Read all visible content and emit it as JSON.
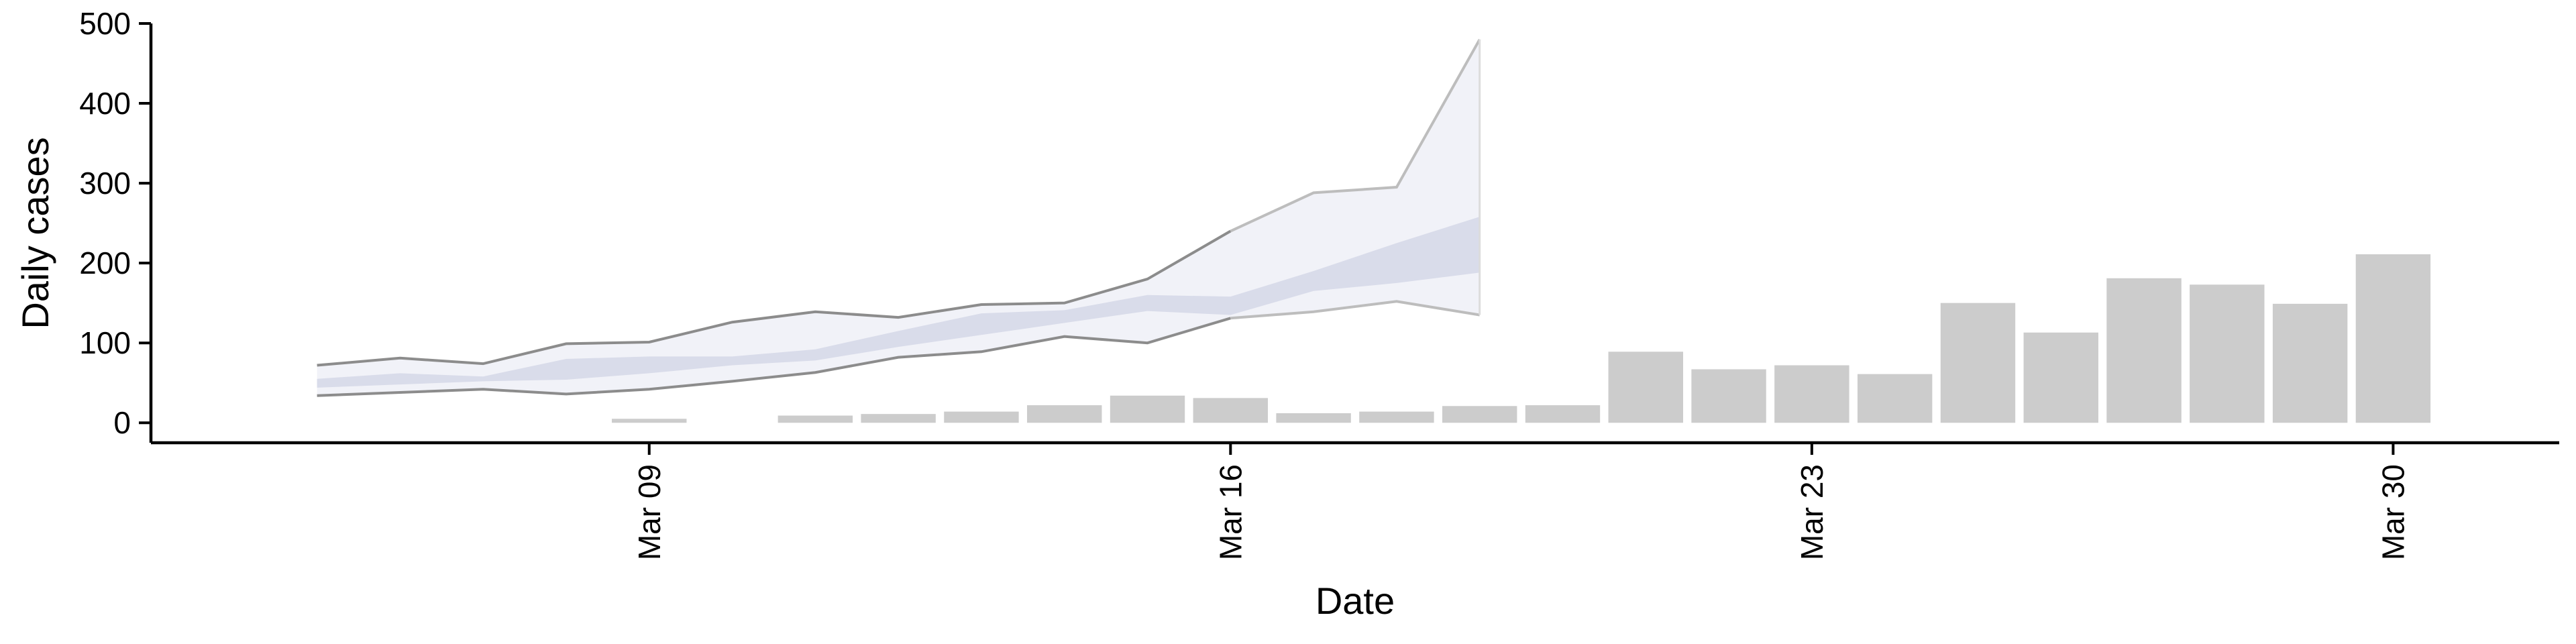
{
  "chart_data": {
    "type": "bar",
    "title": "",
    "xlabel": "Date",
    "ylabel": "Daily cases",
    "ylim": [
      -25,
      500
    ],
    "yticks": [
      0,
      100,
      200,
      300,
      400,
      500
    ],
    "xlim": [
      "2020-03-03",
      "2020-04-01"
    ],
    "xticks": [
      {
        "date": "2020-03-09",
        "label": "Mar 09"
      },
      {
        "date": "2020-03-16",
        "label": "Mar 16"
      },
      {
        "date": "2020-03-23",
        "label": "Mar 23"
      },
      {
        "date": "2020-03-30",
        "label": "Mar 30"
      }
    ],
    "grid": false,
    "legend": "none",
    "colors": {
      "bars": "#cccccc",
      "axis": "#000000",
      "band_inner": "#d3d6e6",
      "band_outer": "#eceef5",
      "line_dark": "#8c8c8c",
      "line_light": "#bdbdbd",
      "line_faint": "#dcdcdc"
    },
    "bars": {
      "dates": [
        "2020-03-09",
        "2020-03-11",
        "2020-03-12",
        "2020-03-13",
        "2020-03-14",
        "2020-03-15",
        "2020-03-16",
        "2020-03-17",
        "2020-03-18",
        "2020-03-19",
        "2020-03-20",
        "2020-03-21",
        "2020-03-22",
        "2020-03-23",
        "2020-03-24",
        "2020-03-25",
        "2020-03-26",
        "2020-03-27",
        "2020-03-28",
        "2020-03-29",
        "2020-03-30"
      ],
      "values": [
        5,
        9,
        11,
        14,
        22,
        34,
        31,
        12,
        14,
        21,
        22,
        89,
        67,
        72,
        61,
        150,
        113,
        181,
        173,
        149,
        211
      ]
    },
    "nowcast": {
      "dates": [
        "2020-03-05",
        "2020-03-06",
        "2020-03-07",
        "2020-03-08",
        "2020-03-09",
        "2020-03-10",
        "2020-03-11",
        "2020-03-12",
        "2020-03-13",
        "2020-03-14",
        "2020-03-15",
        "2020-03-16",
        "2020-03-17",
        "2020-03-18",
        "2020-03-19",
        "2020-03-20",
        "2020-03-21"
      ],
      "upper_outer": [
        72,
        81,
        74,
        99,
        101,
        126,
        139,
        132,
        148,
        150,
        180,
        240,
        288,
        295,
        480,
        480,
        480
      ],
      "lower_outer": [
        34,
        38,
        42,
        36,
        42,
        52,
        63,
        82,
        89,
        108,
        100,
        131,
        139,
        152,
        135,
        135,
        135
      ],
      "upper_inner": [
        55,
        62,
        58,
        80,
        83,
        83,
        92,
        115,
        137,
        141,
        160,
        158,
        190,
        225,
        258,
        258,
        258
      ],
      "lower_inner": [
        44,
        48,
        52,
        54,
        62,
        72,
        78,
        95,
        110,
        125,
        140,
        135,
        165,
        175,
        188,
        188,
        188
      ]
    }
  }
}
